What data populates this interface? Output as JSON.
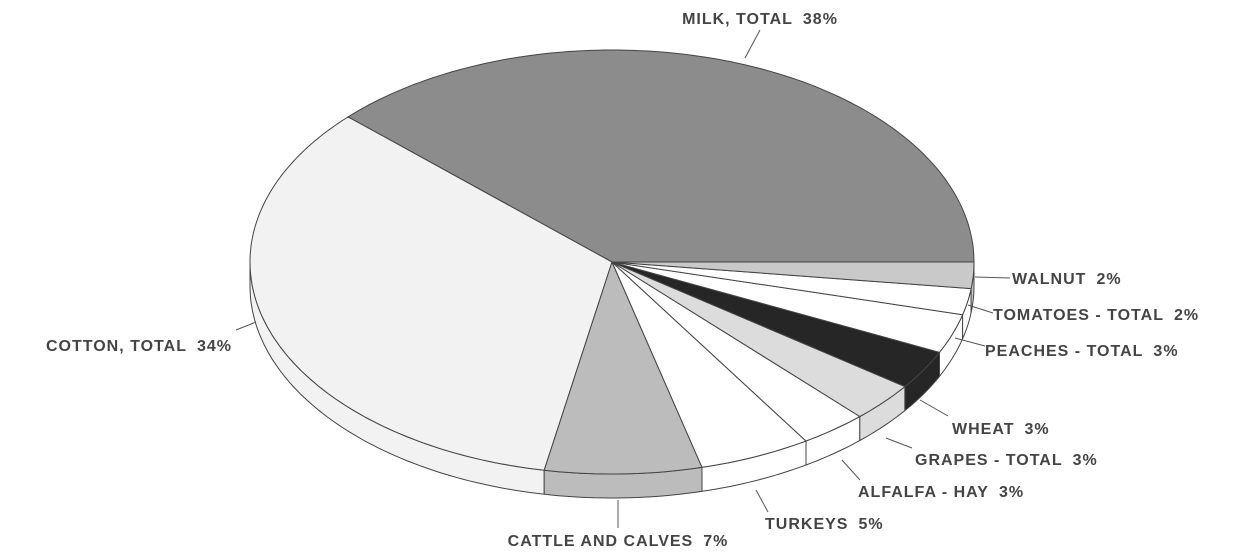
{
  "chart_data": {
    "type": "pie",
    "categories": [
      "MILK, TOTAL",
      "COTTON, TOTAL",
      "CATTLE AND CALVES",
      "TURKEYS",
      "ALFALFA - HAY",
      "GRAPES - TOTAL",
      "WHEAT",
      "PEACHES - TOTAL",
      "TOMATOES - TOTAL",
      "WALNUT"
    ],
    "values": [
      38,
      34,
      7,
      5,
      3,
      3,
      3,
      3,
      2,
      2
    ],
    "value_labels": [
      "38%",
      "34%",
      "7%",
      "5%",
      "3%",
      "3%",
      "3%",
      "3%",
      "2%",
      "2%"
    ],
    "colors": [
      "#8c8c8c",
      "#f2f2f2",
      "#bcbcbc",
      "#ffffff",
      "#ffffff",
      "#dcdcdc",
      "#262626",
      "#ffffff",
      "#ffffff",
      "#c9c9c9"
    ]
  }
}
